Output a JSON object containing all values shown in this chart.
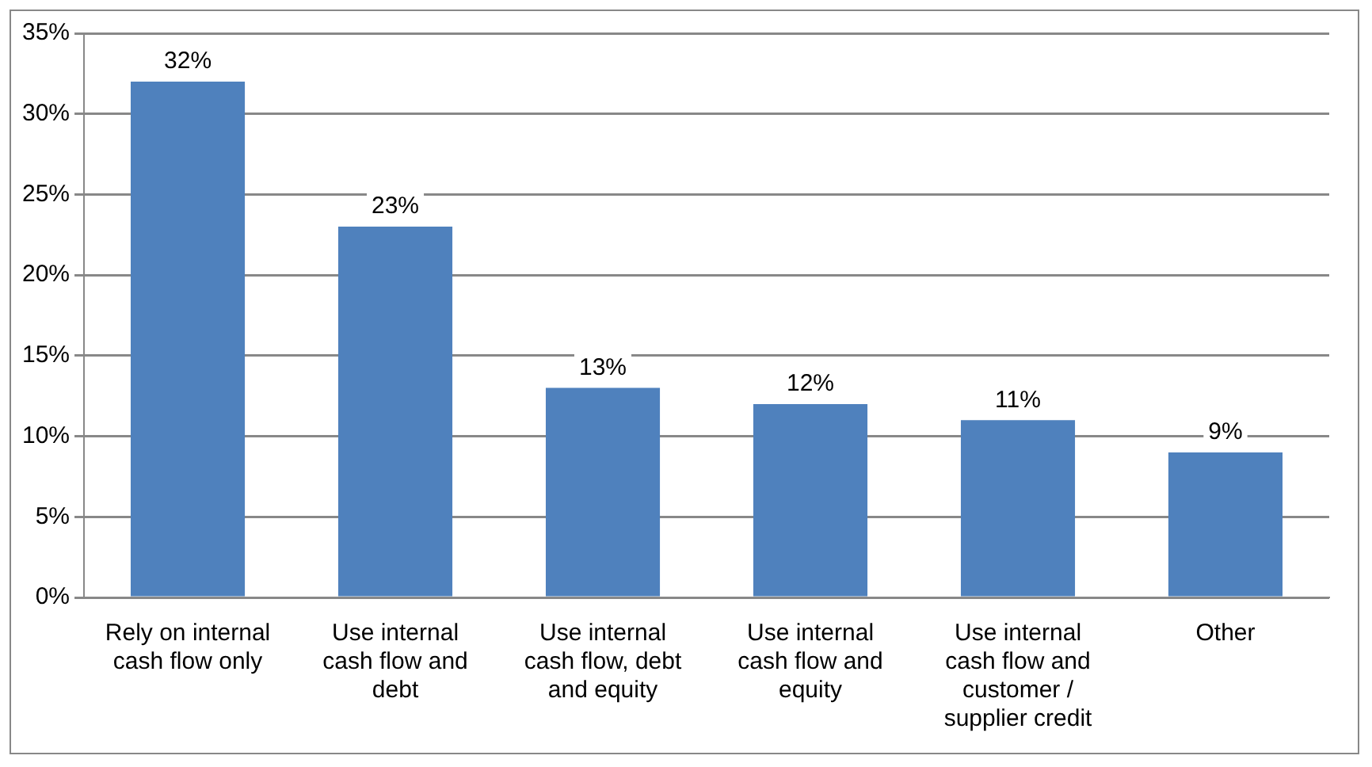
{
  "chart_data": {
    "type": "bar",
    "categories": [
      "Rely on internal cash flow only",
      "Use internal cash flow and debt",
      "Use internal cash flow, debt and equity",
      "Use internal cash flow and equity",
      "Use internal cash flow and customer / supplier credit",
      "Other"
    ],
    "values": [
      32,
      23,
      13,
      12,
      11,
      9
    ],
    "value_labels": [
      "32%",
      "23%",
      "13%",
      "12%",
      "11%",
      "9%"
    ],
    "color": "#4f81bd",
    "ylim": [
      0,
      35
    ],
    "yticks": [
      {
        "value": 0,
        "label": "0%"
      },
      {
        "value": 5,
        "label": "5%"
      },
      {
        "value": 10,
        "label": "10%"
      },
      {
        "value": 15,
        "label": "15%"
      },
      {
        "value": 20,
        "label": "20%"
      },
      {
        "value": 25,
        "label": "25%"
      },
      {
        "value": 30,
        "label": "30%"
      },
      {
        "value": 35,
        "label": "35%"
      }
    ],
    "grid": "y",
    "legend": false
  }
}
